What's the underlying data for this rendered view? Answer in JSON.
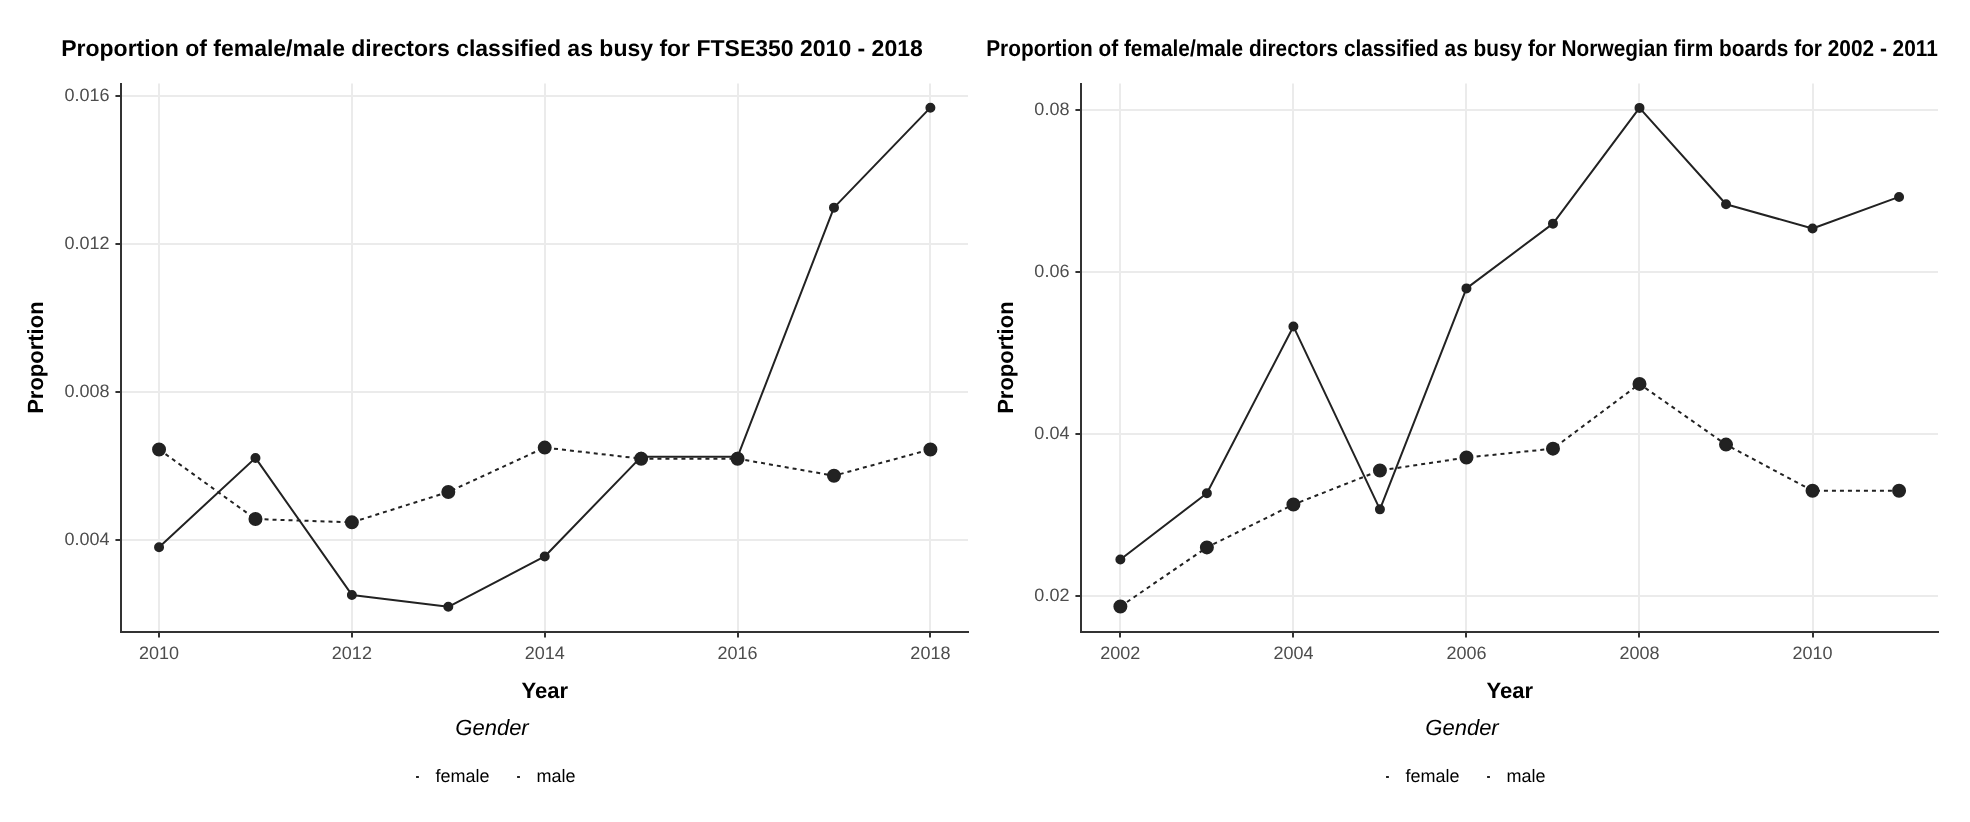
{
  "chart_data": [
    {
      "type": "line",
      "title": "Proportion of female/male directors classified as busy for FTSE350 2010 - 2018",
      "xlabel": "Year",
      "ylabel": "Proportion",
      "legend_title": "Gender",
      "legend": "bottom",
      "grid": true,
      "marker": "circle",
      "x": [
        2010,
        2011,
        2012,
        2013,
        2014,
        2015,
        2016,
        2017,
        2018
      ],
      "xlim": [
        2009.61,
        2018.39
      ],
      "xticks": [
        2010,
        2012,
        2014,
        2016,
        2018
      ],
      "ylim": [
        0.00153,
        0.01633
      ],
      "yticks": [
        0.004,
        0.008,
        0.012,
        0.016
      ],
      "series": [
        {
          "name": "female",
          "color": "#222222",
          "line_style": "solid",
          "values": [
            0.00381,
            0.00622,
            0.00252,
            0.0022,
            0.00356,
            0.00625,
            0.00625,
            0.01298,
            0.01568
          ]
        },
        {
          "name": "male",
          "color": "#222222",
          "line_style": "dotted",
          "values": [
            0.00645,
            0.00457,
            0.00448,
            0.0053,
            0.0065,
            0.0062,
            0.0062,
            0.00574,
            0.00645
          ]
        }
      ]
    },
    {
      "type": "line",
      "title": "Proportion of female/male directors classified as busy for Norwegian firm boards for 2002 - 2011",
      "xlabel": "Year",
      "ylabel": "Proportion",
      "legend_title": "Gender",
      "legend": "bottom",
      "grid": true,
      "marker": "circle",
      "x": [
        2002,
        2003,
        2004,
        2005,
        2006,
        2007,
        2008,
        2009,
        2010,
        2011
      ],
      "xlim": [
        2001.55,
        2011.45
      ],
      "xticks": [
        2002,
        2004,
        2006,
        2008,
        2010
      ],
      "ylim": [
        0.0156,
        0.0833
      ],
      "yticks": [
        0.02,
        0.04,
        0.06,
        0.08
      ],
      "series": [
        {
          "name": "female",
          "color": "#222222",
          "line_style": "solid",
          "values": [
            0.0245,
            0.0327,
            0.0533,
            0.0307,
            0.058,
            0.066,
            0.0803,
            0.0684,
            0.0654,
            0.0693
          ]
        },
        {
          "name": "male",
          "color": "#222222",
          "line_style": "dotted",
          "values": [
            0.0187,
            0.026,
            0.0313,
            0.0355,
            0.0371,
            0.0382,
            0.0462,
            0.0387,
            0.033,
            0.033
          ]
        }
      ]
    }
  ]
}
